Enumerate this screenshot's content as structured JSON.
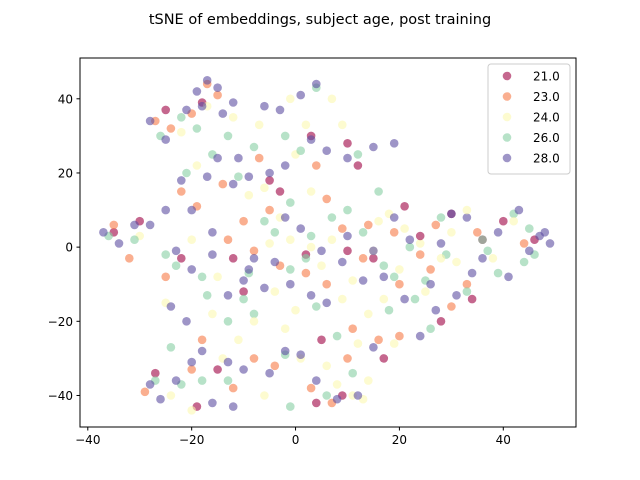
{
  "chart_data": {
    "type": "scatter",
    "title": "tSNE of embeddings, subject age, post training",
    "xlabel": "",
    "ylabel": "",
    "xlim": [
      -41.5,
      54
    ],
    "ylim": [
      -48.5,
      51
    ],
    "xticks": [
      -40,
      -20,
      0,
      20,
      40
    ],
    "yticks": [
      -40,
      -20,
      0,
      20,
      40
    ],
    "grid": false,
    "legend_position": "top-right",
    "series": [
      {
        "name": "21.0",
        "color": "#9e0142",
        "opacity": 0.6,
        "points": [
          [
            -25,
            37
          ],
          [
            -18,
            39
          ],
          [
            -5,
            18
          ],
          [
            3,
            30
          ],
          [
            10,
            28
          ],
          [
            2,
            -2
          ],
          [
            10,
            -1
          ],
          [
            -12,
            -3
          ],
          [
            -22,
            -3
          ],
          [
            15,
            -3
          ],
          [
            21,
            11
          ],
          [
            30,
            9
          ],
          [
            34,
            -14
          ],
          [
            28,
            -20
          ],
          [
            -19,
            -43
          ],
          [
            -15,
            -33
          ],
          [
            4,
            -42
          ],
          [
            -27,
            -34
          ],
          [
            -35,
            4
          ],
          [
            36,
            2
          ],
          [
            46,
            2
          ],
          [
            -30,
            7
          ],
          [
            17,
            -30
          ],
          [
            9,
            -40
          ],
          [
            -10,
            -12
          ],
          [
            -3,
            15
          ],
          [
            24,
            3
          ],
          [
            40,
            7
          ],
          [
            12,
            22
          ],
          [
            5,
            -25
          ]
        ]
      },
      {
        "name": "23.0",
        "color": "#f67a46",
        "opacity": 0.6,
        "points": [
          [
            -27,
            34
          ],
          [
            -24,
            32
          ],
          [
            -20,
            36
          ],
          [
            -17,
            44
          ],
          [
            -15,
            41
          ],
          [
            -22,
            15
          ],
          [
            -19,
            11
          ],
          [
            -10,
            7
          ],
          [
            -5,
            10
          ],
          [
            -3,
            -5
          ],
          [
            2,
            -7
          ],
          [
            6,
            -10
          ],
          [
            13,
            -3
          ],
          [
            20,
            -10
          ],
          [
            26,
            -6
          ],
          [
            33,
            -10
          ],
          [
            10,
            -30
          ],
          [
            16,
            -25
          ],
          [
            20,
            -24
          ],
          [
            -20,
            -33
          ],
          [
            -12,
            -38
          ],
          [
            -8,
            -30
          ],
          [
            3,
            -38
          ],
          [
            7,
            -42
          ],
          [
            -29,
            -39
          ],
          [
            -35,
            6
          ],
          [
            -32,
            -3
          ],
          [
            14,
            6
          ],
          [
            19,
            4
          ],
          [
            24,
            -2
          ],
          [
            35,
            4
          ],
          [
            44,
            1
          ],
          [
            -14,
            17
          ],
          [
            -7,
            24
          ],
          [
            6,
            13
          ],
          [
            4,
            22
          ],
          [
            -8,
            -1
          ],
          [
            11,
            -22
          ],
          [
            30,
            -16
          ],
          [
            -25,
            -8
          ],
          [
            -18,
            -25
          ],
          [
            -4,
            -32
          ],
          [
            -13,
            2
          ],
          [
            9,
            5
          ],
          [
            27,
            6
          ]
        ]
      },
      {
        "name": "24.0",
        "color": "#fbf8b0",
        "opacity": 0.6,
        "points": [
          [
            -12,
            35
          ],
          [
            -17,
            38
          ],
          [
            -7,
            33
          ],
          [
            -6,
            16
          ],
          [
            -3,
            8
          ],
          [
            -1,
            2
          ],
          [
            3,
            0
          ],
          [
            5,
            -5
          ],
          [
            9,
            -14
          ],
          [
            12,
            -26
          ],
          [
            14,
            -36
          ],
          [
            11,
            -40
          ],
          [
            8,
            -37
          ],
          [
            -14,
            -30
          ],
          [
            -6,
            -40
          ],
          [
            -20,
            -44
          ],
          [
            -24,
            -40
          ],
          [
            -11,
            -25
          ],
          [
            -16,
            -18
          ],
          [
            21,
            5
          ],
          [
            18,
            9
          ],
          [
            16,
            7
          ],
          [
            24,
            1
          ],
          [
            30,
            4
          ],
          [
            15,
            -1
          ],
          [
            19,
            -26
          ],
          [
            31,
            -4
          ],
          [
            28,
            -3
          ],
          [
            7,
            40
          ],
          [
            2,
            33
          ],
          [
            0,
            -17
          ],
          [
            -2,
            -22
          ],
          [
            -9,
            14
          ],
          [
            3,
            15
          ],
          [
            9,
            33
          ],
          [
            -20,
            2
          ],
          [
            -30,
            3
          ],
          [
            38,
            -3
          ],
          [
            42,
            7
          ],
          [
            11,
            -9
          ],
          [
            7,
            2
          ],
          [
            -4,
            -12
          ],
          [
            14,
            -18
          ],
          [
            25,
            -12
          ],
          [
            -25,
            -15
          ],
          [
            -8,
            -20
          ],
          [
            -1,
            40
          ],
          [
            -19,
            22
          ],
          [
            0,
            25
          ],
          [
            6,
            -32
          ],
          [
            13,
            -41
          ],
          [
            -22,
            31
          ],
          [
            -15,
            -8
          ],
          [
            20,
            -6
          ],
          [
            33,
            10
          ],
          [
            -5,
            1
          ],
          [
            1,
            -30
          ],
          [
            17,
            -14
          ]
        ]
      },
      {
        "name": "26.0",
        "color": "#87cfa4",
        "opacity": 0.6,
        "points": [
          [
            -26,
            30
          ],
          [
            -22,
            35
          ],
          [
            -19,
            32
          ],
          [
            -13,
            30
          ],
          [
            -21,
            20
          ],
          [
            -16,
            25
          ],
          [
            -8,
            27
          ],
          [
            -1,
            12
          ],
          [
            -2,
            30
          ],
          [
            4,
            43
          ],
          [
            12,
            25
          ],
          [
            16,
            15
          ],
          [
            7,
            8
          ],
          [
            13,
            4
          ],
          [
            2,
            -3
          ],
          [
            -1,
            -6
          ],
          [
            -9,
            -7
          ],
          [
            -18,
            -8
          ],
          [
            -23,
            -5
          ],
          [
            -25,
            -2
          ],
          [
            19,
            -8
          ],
          [
            23,
            -14
          ],
          [
            29,
            -2
          ],
          [
            37,
            -1
          ],
          [
            42,
            9
          ],
          [
            45,
            5
          ],
          [
            46,
            -2
          ],
          [
            39,
            -7
          ],
          [
            33,
            -12
          ],
          [
            26,
            -22
          ],
          [
            11,
            -34
          ],
          [
            6,
            -40
          ],
          [
            -1,
            -43
          ],
          [
            -13,
            -36
          ],
          [
            -18,
            -36
          ],
          [
            -22,
            -37
          ],
          [
            -27,
            -36
          ],
          [
            -8,
            -18
          ],
          [
            -13,
            -20
          ],
          [
            -2,
            -29
          ],
          [
            8,
            -24
          ],
          [
            18,
            -17
          ],
          [
            36,
            2
          ],
          [
            -36,
            3
          ],
          [
            -31,
            2
          ],
          [
            22,
            0
          ],
          [
            28,
            8
          ],
          [
            -4,
            4
          ],
          [
            3,
            3
          ],
          [
            -11,
            19
          ],
          [
            -6,
            7
          ],
          [
            17,
            -5
          ],
          [
            25,
            -9
          ],
          [
            44,
            -4
          ],
          [
            -17,
            -13
          ],
          [
            4,
            -16
          ],
          [
            10,
            10
          ],
          [
            -24,
            -27
          ],
          [
            -10,
            -14
          ],
          [
            1,
            26
          ]
        ]
      },
      {
        "name": "28.0",
        "color": "#5e4fa2",
        "opacity": 0.6,
        "points": [
          [
            -28,
            34
          ],
          [
            -25,
            29
          ],
          [
            -21,
            37
          ],
          [
            -19,
            42
          ],
          [
            -17,
            45
          ],
          [
            -15,
            43
          ],
          [
            -18,
            38
          ],
          [
            -12,
            39
          ],
          [
            -14,
            36
          ],
          [
            -11,
            24
          ],
          [
            -15,
            24
          ],
          [
            -17,
            19
          ],
          [
            -12,
            17
          ],
          [
            -22,
            18
          ],
          [
            -20,
            10
          ],
          [
            -25,
            10
          ],
          [
            -16,
            4
          ],
          [
            -6,
            38
          ],
          [
            -3,
            37
          ],
          [
            4,
            44
          ],
          [
            1,
            41
          ],
          [
            3,
            29
          ],
          [
            6,
            26
          ],
          [
            10,
            24
          ],
          [
            15,
            27
          ],
          [
            19,
            28
          ],
          [
            -2,
            22
          ],
          [
            -5,
            20
          ],
          [
            -9,
            19
          ],
          [
            -2,
            8
          ],
          [
            1,
            5
          ],
          [
            5,
            -1
          ],
          [
            9,
            -4
          ],
          [
            13,
            -9
          ],
          [
            17,
            -8
          ],
          [
            21,
            -14
          ],
          [
            27,
            -17
          ],
          [
            31,
            -13
          ],
          [
            34,
            -7
          ],
          [
            41,
            -8
          ],
          [
            45,
            -1
          ],
          [
            47,
            3
          ],
          [
            43,
            10
          ],
          [
            39,
            4
          ],
          [
            33,
            8
          ],
          [
            28,
            1
          ],
          [
            22,
            2
          ],
          [
            19,
            8
          ],
          [
            15,
            -1
          ],
          [
            -31,
            6
          ],
          [
            -34,
            1
          ],
          [
            -37,
            4
          ],
          [
            -28,
            6
          ],
          [
            -23,
            -1
          ],
          [
            -20,
            -6
          ],
          [
            -16,
            -2
          ],
          [
            -10,
            -9
          ],
          [
            -6,
            -11
          ],
          [
            -1,
            -10
          ],
          [
            3,
            -13
          ],
          [
            6,
            -15
          ],
          [
            -5,
            -34
          ],
          [
            -2,
            -28
          ],
          [
            1,
            -29
          ],
          [
            4,
            -36
          ],
          [
            8,
            -41
          ],
          [
            12,
            -40
          ],
          [
            15,
            -27
          ],
          [
            -10,
            -33
          ],
          [
            -13,
            -31
          ],
          [
            -18,
            -28
          ],
          [
            -20,
            -31
          ],
          [
            -23,
            -36
          ],
          [
            -16,
            -42
          ],
          [
            -12,
            -43
          ],
          [
            -28,
            -37
          ],
          [
            -26,
            -41
          ],
          [
            -8,
            -3
          ],
          [
            -13,
            -13
          ],
          [
            -9,
            -6
          ],
          [
            24,
            -24
          ],
          [
            26,
            -10
          ],
          [
            36,
            -3
          ],
          [
            30,
            9
          ],
          [
            10,
            3
          ],
          [
            -4,
            -4
          ],
          [
            49,
            1
          ],
          [
            48,
            4
          ],
          [
            -24,
            -16
          ],
          [
            -21,
            -20
          ]
        ]
      }
    ]
  }
}
